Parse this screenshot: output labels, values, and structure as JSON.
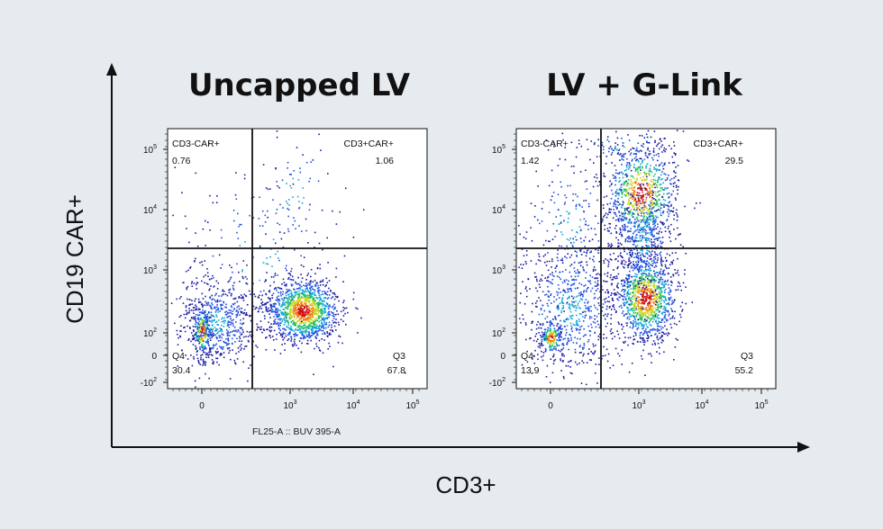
{
  "chart_data": {
    "type": "scatter",
    "y_axis_title": "CD19 CAR+",
    "x_axis_title": "CD3+",
    "x_param_label": "FL25-A :: BUV 395-A",
    "y_ticks": [
      {
        "base": "-10",
        "exp": "2"
      },
      {
        "base": "0",
        "exp": ""
      },
      {
        "base": "10",
        "exp": "2"
      },
      {
        "base": "10",
        "exp": "3"
      },
      {
        "base": "10",
        "exp": "4"
      },
      {
        "base": "10",
        "exp": "5"
      }
    ],
    "x_ticks": [
      {
        "base": "0",
        "exp": ""
      },
      {
        "base": "10",
        "exp": "3"
      },
      {
        "base": "10",
        "exp": "4"
      },
      {
        "base": "10",
        "exp": "5"
      }
    ],
    "panels": [
      {
        "title": "Uncapped LV",
        "quadrants": {
          "q1": {
            "name": "CD3-CAR+",
            "value": "0.76"
          },
          "q2": {
            "name": "CD3+CAR+",
            "value": "1.06"
          },
          "q3": {
            "name": "Q3",
            "value": "67.8"
          },
          "q4": {
            "name": "Q4",
            "value": "30.4"
          }
        }
      },
      {
        "title": "LV + G-Link",
        "quadrants": {
          "q1": {
            "name": "CD3-CAR+",
            "value": "1.42"
          },
          "q2": {
            "name": "CD3+CAR+",
            "value": "29.5"
          },
          "q3": {
            "name": "Q3",
            "value": "55.2"
          },
          "q4": {
            "name": "Q4",
            "value": "13.9"
          }
        }
      }
    ],
    "density_colors": [
      "#1a1aa0",
      "#2050e0",
      "#10a8d8",
      "#20c060",
      "#c8d820",
      "#f08010",
      "#d01010"
    ]
  }
}
